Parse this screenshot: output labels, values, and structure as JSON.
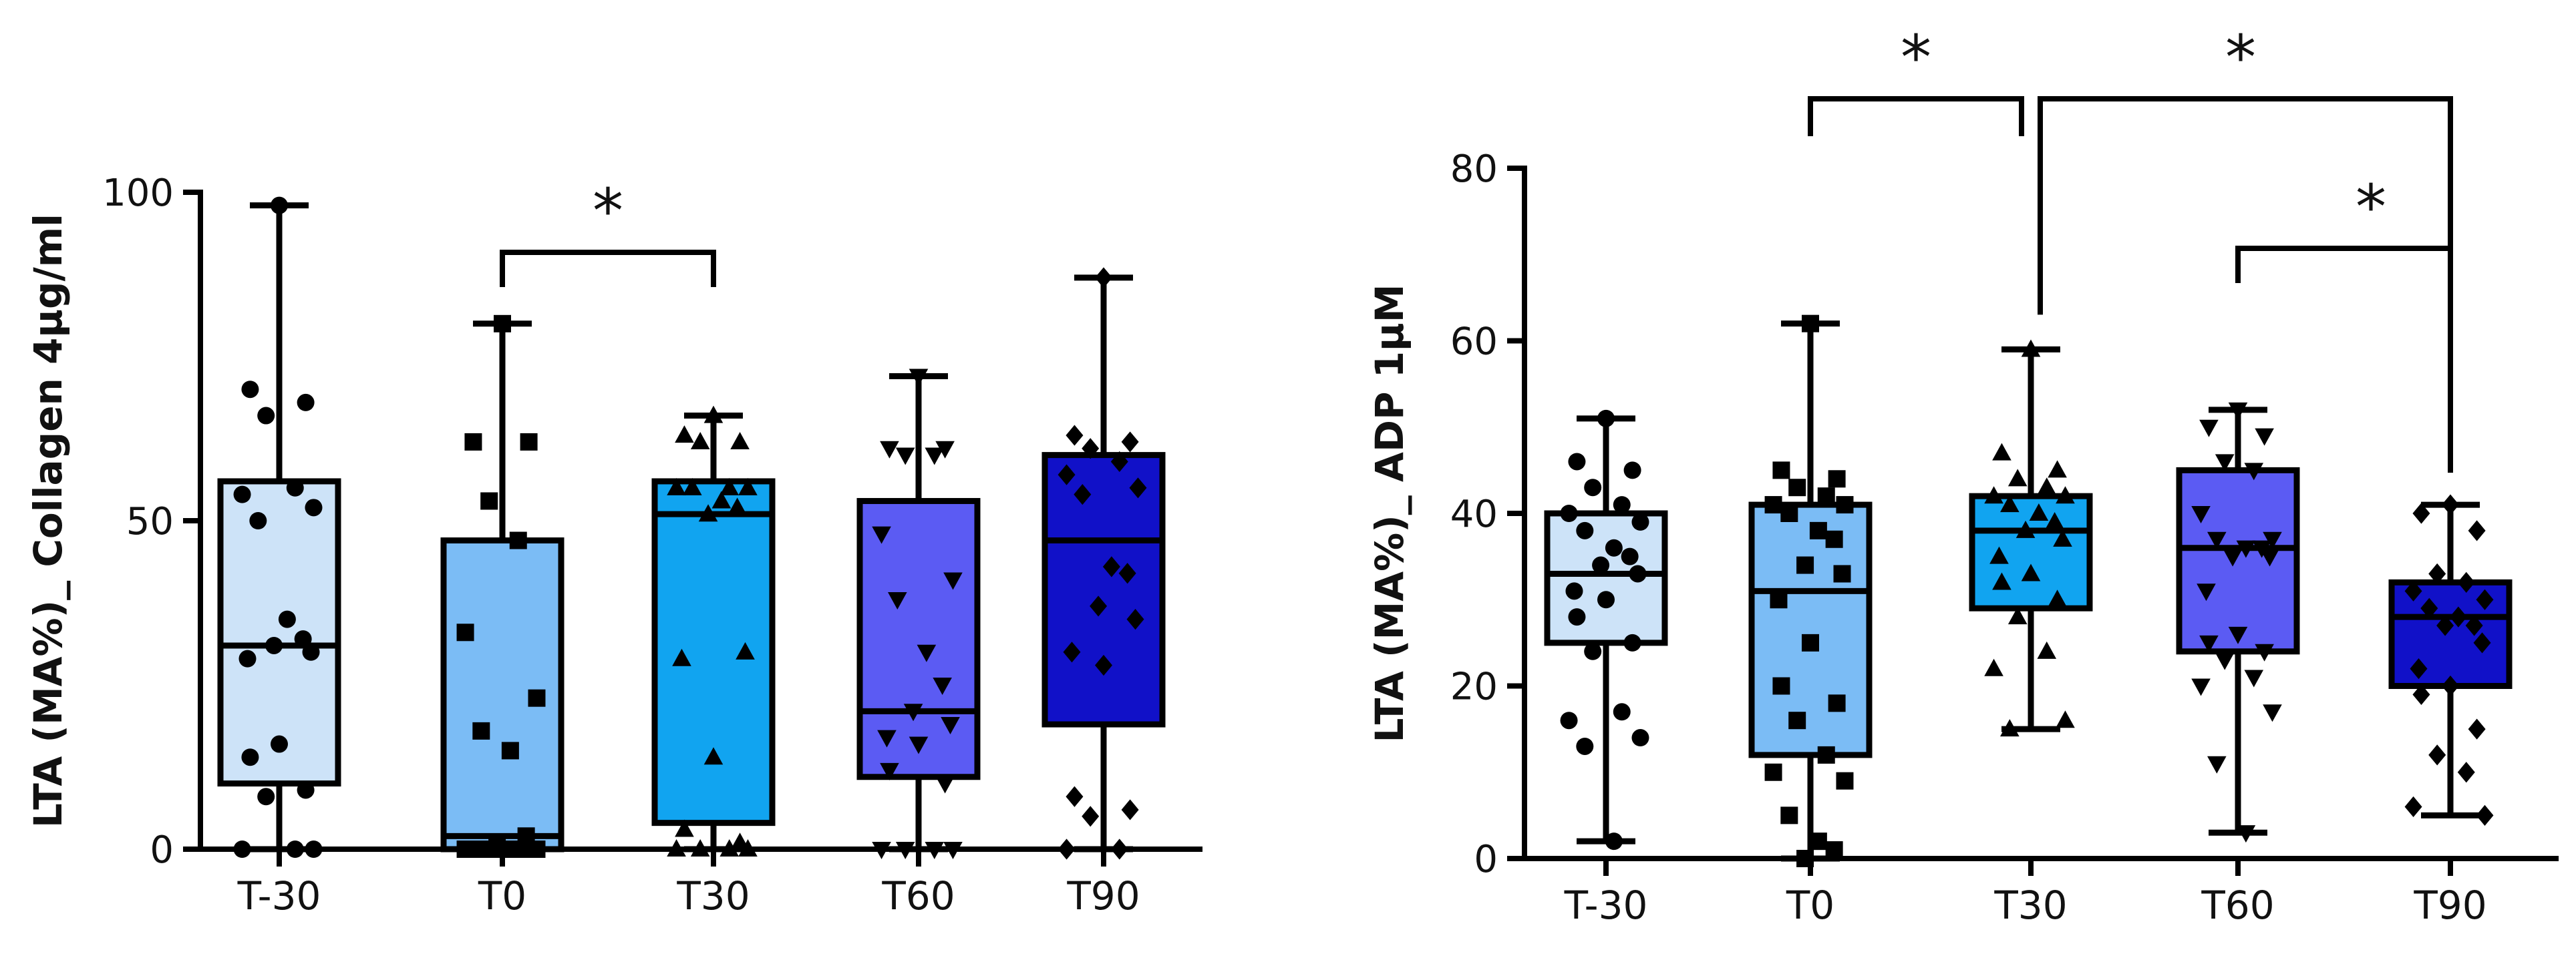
{
  "chart_data": [
    {
      "type": "box",
      "title": "",
      "xlabel": "",
      "ylabel": "LTA (MA%)_ Collagen 4μg/ml",
      "ylim": [
        0,
        100
      ],
      "yticks": [
        0,
        50,
        100
      ],
      "grid": false,
      "categories": [
        "T-30",
        "T0",
        "T30",
        "T60",
        "T90"
      ],
      "colors": [
        "#cde3f8",
        "#7bbcf5",
        "#11a4f0",
        "#5b5bf3",
        "#1111c8"
      ],
      "markers": [
        "circle",
        "square",
        "triangle-up",
        "triangle-down",
        "diamond"
      ],
      "boxes": [
        {
          "category": "T-30",
          "min": 0,
          "q1": 10,
          "median": 31,
          "q3": 56,
          "max": 98
        },
        {
          "category": "T0",
          "min": 0,
          "q1": 0,
          "median": 2,
          "q3": 47,
          "max": 80
        },
        {
          "category": "T30",
          "min": 0,
          "q1": 4,
          "median": 51,
          "q3": 56,
          "max": 66
        },
        {
          "category": "T60",
          "min": 0,
          "q1": 11,
          "median": 21,
          "q3": 53,
          "max": 72
        },
        {
          "category": "T90",
          "min": 0,
          "q1": 19,
          "median": 47,
          "q3": 60,
          "max": 87
        }
      ],
      "points": [
        {
          "category": "T-30",
          "values": [
            98,
            70,
            68,
            66,
            55,
            54,
            52,
            50,
            35,
            32,
            31,
            30,
            29,
            16,
            14,
            9,
            8,
            0,
            0,
            0
          ]
        },
        {
          "category": "T0",
          "values": [
            80,
            62,
            62,
            53,
            47,
            33,
            23,
            18,
            15,
            2,
            1,
            0,
            0,
            0,
            0,
            0,
            0,
            0,
            0,
            0
          ]
        },
        {
          "category": "T30",
          "values": [
            66,
            63,
            62,
            62,
            55,
            55,
            55,
            55,
            53,
            52,
            51,
            30,
            29,
            14,
            3,
            1,
            0,
            0,
            0,
            0
          ]
        },
        {
          "category": "T60",
          "values": [
            72,
            61,
            61,
            60,
            60,
            48,
            41,
            38,
            30,
            25,
            21,
            19,
            17,
            16,
            12,
            10,
            0,
            0,
            0,
            0
          ]
        },
        {
          "category": "T90",
          "values": [
            87,
            63,
            62,
            61,
            59,
            57,
            55,
            54,
            43,
            42,
            37,
            35,
            30,
            28,
            8,
            6,
            5,
            0,
            0
          ]
        }
      ],
      "significance": [
        {
          "from": "T0",
          "to": "T30",
          "label": "*"
        }
      ]
    },
    {
      "type": "box",
      "title": "",
      "xlabel": "",
      "ylabel": "LTA (MA%)_ ADP 1μM",
      "ylim": [
        0,
        80
      ],
      "yticks": [
        0,
        20,
        40,
        60,
        80
      ],
      "grid": false,
      "categories": [
        "T-30",
        "T0",
        "T30",
        "T60",
        "T90"
      ],
      "colors": [
        "#cde3f8",
        "#7bbcf5",
        "#11a4f0",
        "#5b5bf3",
        "#1111c8"
      ],
      "markers": [
        "circle",
        "square",
        "triangle-up",
        "triangle-down",
        "diamond"
      ],
      "boxes": [
        {
          "category": "T-30",
          "min": 2,
          "q1": 25,
          "median": 33,
          "q3": 40,
          "max": 51
        },
        {
          "category": "T0",
          "min": 0,
          "q1": 12,
          "median": 31,
          "q3": 41,
          "max": 62
        },
        {
          "category": "T30",
          "min": 15,
          "q1": 29,
          "median": 38,
          "q3": 42,
          "max": 59
        },
        {
          "category": "T60",
          "min": 3,
          "q1": 24,
          "median": 36,
          "q3": 45,
          "max": 52
        },
        {
          "category": "T90",
          "min": 5,
          "q1": 20,
          "median": 28,
          "q3": 32,
          "max": 41
        }
      ],
      "points": [
        {
          "category": "T-30",
          "values": [
            51,
            46,
            45,
            43,
            41,
            40,
            39,
            38,
            36,
            35,
            34,
            33,
            31,
            30,
            28,
            25,
            24,
            17,
            16,
            14,
            13,
            2
          ]
        },
        {
          "category": "T0",
          "values": [
            62,
            45,
            44,
            43,
            42,
            41,
            41,
            40,
            38,
            37,
            34,
            33,
            30,
            25,
            20,
            18,
            16,
            12,
            10,
            9,
            5,
            2,
            1,
            0
          ]
        },
        {
          "category": "T30",
          "values": [
            59,
            47,
            45,
            44,
            43,
            42,
            42,
            41,
            40,
            39,
            38,
            37,
            35,
            33,
            32,
            30,
            28,
            24,
            22,
            16,
            15
          ]
        },
        {
          "category": "T60",
          "values": [
            52,
            50,
            49,
            46,
            45,
            40,
            37,
            37,
            36,
            36,
            35,
            35,
            31,
            26,
            25,
            24,
            23,
            21,
            20,
            17,
            11,
            3
          ]
        },
        {
          "category": "T90",
          "values": [
            41,
            40,
            38,
            33,
            32,
            31,
            30,
            29,
            28,
            27,
            27,
            25,
            22,
            20,
            19,
            15,
            12,
            10,
            6,
            5
          ]
        }
      ],
      "significance": [
        {
          "from": "T0",
          "to": "T30",
          "label": "*"
        },
        {
          "from": "T30",
          "to": "T90",
          "label": "*"
        },
        {
          "from": "T60",
          "to": "T90",
          "label": "*"
        }
      ]
    }
  ]
}
